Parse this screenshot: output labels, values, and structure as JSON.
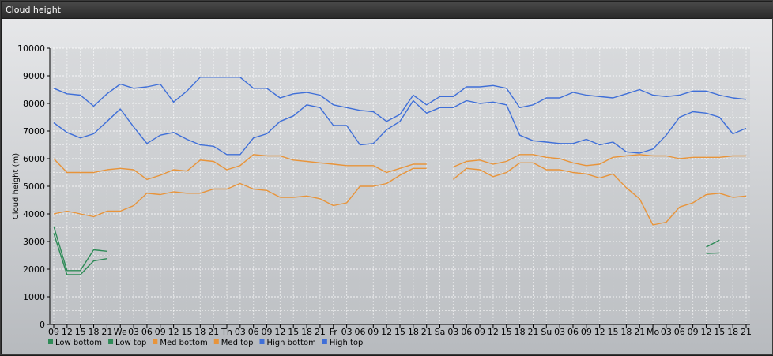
{
  "window": {
    "title": "Cloud height"
  },
  "chart_data": {
    "type": "line",
    "ylabel": "Cloud height (m)",
    "ylim": [
      0,
      10000
    ],
    "yticks": [
      0,
      1000,
      2000,
      3000,
      4000,
      5000,
      6000,
      7000,
      8000,
      9000,
      10000
    ],
    "x_labels": [
      "09",
      "12",
      "15",
      "18",
      "21",
      "We",
      "03",
      "06",
      "09",
      "12",
      "15",
      "18",
      "21",
      "Th",
      "03",
      "06",
      "09",
      "12",
      "15",
      "18",
      "21",
      "Fr",
      "03",
      "06",
      "09",
      "12",
      "15",
      "18",
      "21",
      "Sa",
      "03",
      "06",
      "09",
      "12",
      "15",
      "18",
      "21",
      "Su",
      "03",
      "06",
      "09",
      "12",
      "15",
      "18",
      "21",
      "Mo",
      "03",
      "06",
      "09",
      "12",
      "15",
      "18",
      "21"
    ],
    "grid": true,
    "legend_position": "bottom-left",
    "series": [
      {
        "name": "Low bottom",
        "color": "#2e8b57",
        "values": [
          3300,
          1800,
          1800,
          2300,
          2380,
          null,
          null,
          null,
          null,
          null,
          null,
          null,
          null,
          null,
          null,
          null,
          null,
          null,
          null,
          null,
          null,
          null,
          null,
          null,
          null,
          null,
          null,
          null,
          null,
          null,
          null,
          null,
          null,
          null,
          null,
          null,
          null,
          null,
          null,
          null,
          null,
          null,
          null,
          null,
          null,
          null,
          null,
          null,
          null,
          2570,
          2590,
          null,
          null
        ]
      },
      {
        "name": "Low top",
        "color": "#2e8b57",
        "values": [
          3550,
          1950,
          1950,
          2700,
          2650,
          null,
          null,
          null,
          null,
          null,
          null,
          null,
          null,
          null,
          null,
          null,
          null,
          null,
          null,
          null,
          null,
          null,
          null,
          null,
          null,
          null,
          null,
          null,
          null,
          null,
          null,
          null,
          null,
          null,
          null,
          null,
          null,
          null,
          null,
          null,
          null,
          null,
          null,
          null,
          null,
          null,
          null,
          null,
          null,
          2800,
          3050,
          null,
          null
        ]
      },
      {
        "name": "Med bottom",
        "color": "#e8943a",
        "values": [
          4000,
          4100,
          4000,
          3900,
          4100,
          4100,
          4300,
          4750,
          4700,
          4800,
          4750,
          4750,
          4900,
          4900,
          5100,
          4900,
          4850,
          4600,
          4600,
          4650,
          4550,
          4300,
          4400,
          5000,
          5000,
          5100,
          5400,
          5650,
          5650,
          null,
          5250,
          5650,
          5600,
          5350,
          5500,
          5850,
          5850,
          5600,
          5600,
          5500,
          5450,
          5300,
          5450,
          4950,
          4550,
          3600,
          3700,
          4250,
          4400,
          4700,
          4750,
          4600,
          4650
        ]
      },
      {
        "name": "Med top",
        "color": "#e8943a",
        "values": [
          6000,
          5500,
          5500,
          5500,
          5600,
          5650,
          5600,
          5250,
          5400,
          5600,
          5550,
          5950,
          5900,
          5600,
          5750,
          6150,
          6100,
          6100,
          5950,
          5900,
          5850,
          5800,
          5750,
          5750,
          5750,
          5500,
          5650,
          5800,
          5800,
          null,
          5700,
          5900,
          5950,
          5800,
          5900,
          6150,
          6150,
          6050,
          6000,
          5850,
          5750,
          5800,
          6050,
          6100,
          6150,
          6100,
          6100,
          6000,
          6050,
          6050,
          6050,
          6100,
          6100
        ]
      },
      {
        "name": "High bottom",
        "color": "#3f6fd8",
        "values": [
          7300,
          6950,
          6750,
          6900,
          7350,
          7800,
          7150,
          6550,
          6850,
          6950,
          6700,
          6500,
          6450,
          6150,
          6150,
          6750,
          6900,
          7350,
          7550,
          7950,
          7850,
          7200,
          7200,
          6500,
          6550,
          7050,
          7350,
          8100,
          7650,
          7850,
          7850,
          8100,
          8000,
          8050,
          7950,
          6850,
          6650,
          6600,
          6550,
          6550,
          6700,
          6500,
          6600,
          6250,
          6200,
          6350,
          6850,
          7500,
          7700,
          7650,
          7500,
          6900,
          7100
        ]
      },
      {
        "name": "High top",
        "color": "#3f6fd8",
        "values": [
          8550,
          8350,
          8300,
          7900,
          8350,
          8700,
          8550,
          8600,
          8700,
          8050,
          8450,
          8950,
          8950,
          8950,
          8950,
          8550,
          8550,
          8200,
          8350,
          8400,
          8300,
          7950,
          7850,
          7750,
          7700,
          7350,
          7600,
          8300,
          7950,
          8250,
          8250,
          8600,
          8600,
          8650,
          8550,
          7850,
          7950,
          8200,
          8200,
          8400,
          8300,
          8250,
          8200,
          8350,
          8500,
          8300,
          8250,
          8300,
          8450,
          8450,
          8300,
          8200,
          8150
        ]
      }
    ]
  }
}
